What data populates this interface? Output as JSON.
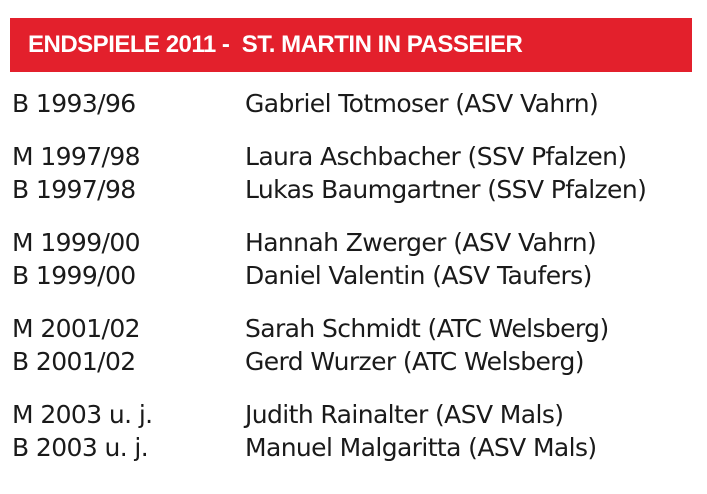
{
  "header": {
    "title": "ENDSPIELE 2011 -  ST. MARTIN IN PASSEIER"
  },
  "groups": [
    [
      [
        "B 1993/96",
        "Gabriel Totmoser (ASV Vahrn)"
      ]
    ],
    [
      [
        "M 1997/98",
        "Laura Aschbacher (SSV Pfalzen)"
      ],
      [
        "B 1997/98",
        "Lukas Baumgartner (SSV Pfalzen)"
      ]
    ],
    [
      [
        "M 1999/00",
        "Hannah Zwerger (ASV Vahrn)"
      ],
      [
        "B 1999/00",
        "Daniel Valentin (ASV Taufers)"
      ]
    ],
    [
      [
        "M 2001/02",
        "Sarah Schmidt (ATC Welsberg)"
      ],
      [
        "B 2001/02",
        "Gerd Wurzer (ATC Welsberg)"
      ]
    ],
    [
      [
        "M 2003 u. j.",
        "Judith Rainalter (ASV Mals)"
      ],
      [
        "B 2003 u. j.",
        "Manuel Malgaritta (ASV Mals)"
      ]
    ]
  ]
}
